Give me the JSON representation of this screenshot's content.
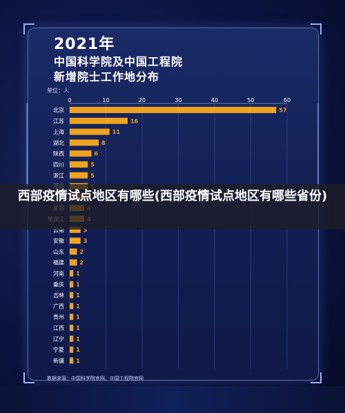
{
  "title": {
    "year": "2021年",
    "line1": "中国科学院及中国工程院",
    "line2": "新增院士工作地分布"
  },
  "unit_label": "单位：人",
  "overlay_title": "西部疫情试点地区有哪些(西部疫情试点地区有哪些省份)",
  "source": "数据来源：中国科学院官网、中国工程院官网",
  "colors": {
    "bar": "#f0a31e",
    "label": "#f0a31e",
    "background": "#0a1338",
    "frame": "#1a2a66"
  },
  "chart_data": {
    "type": "bar",
    "orientation": "horizontal",
    "categories": [
      "北京",
      "江苏",
      "上海",
      "湖北",
      "陕西",
      "四川",
      "浙江",
      "湖南",
      "广东",
      "甘肃",
      "黑龙江",
      "云南",
      "安徽",
      "山东",
      "福建",
      "河南",
      "重庆",
      "吉林",
      "广西",
      "贵州",
      "江西",
      "辽宁",
      "宁夏",
      "新疆"
    ],
    "values": [
      57,
      16,
      11,
      8,
      6,
      5,
      5,
      5,
      4,
      4,
      4,
      3,
      3,
      2,
      2,
      1,
      1,
      1,
      1,
      1,
      1,
      1,
      1,
      1
    ],
    "xticks": [
      0,
      10,
      20,
      30,
      40,
      50,
      60
    ],
    "xlim": [
      0,
      60
    ],
    "ylabel": "单位：人"
  }
}
